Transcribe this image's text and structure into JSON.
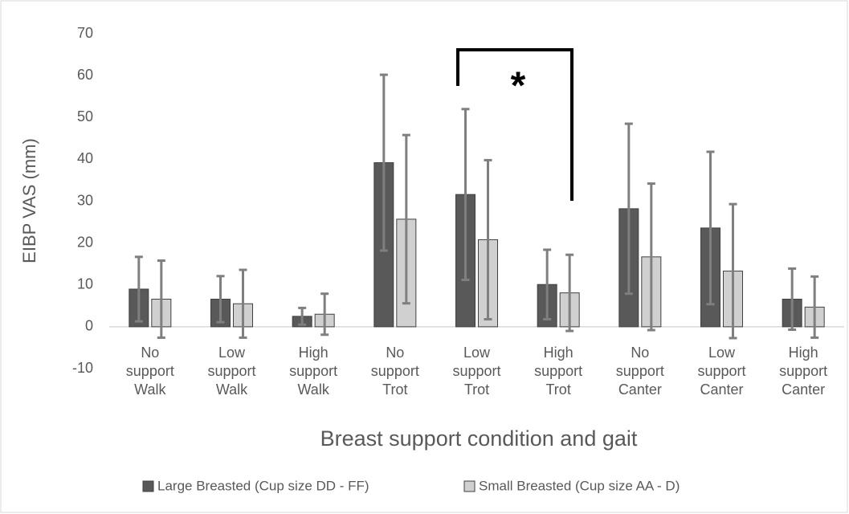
{
  "chart_data": {
    "type": "bar",
    "x_label": "Breast support condition and gait",
    "y_label": "EIBP VAS (mm)",
    "annotation": "*",
    "categories": [
      "No support Walk",
      "Low support Walk",
      "High support Walk",
      "No support Trot",
      "Low support Trot",
      "High support Trot",
      "No support Canter",
      "Low support Canter",
      "High support Canter"
    ],
    "series": [
      {
        "name": "Large Breasted (Cup size DD - FF)",
        "color": "#595959",
        "values": [
          9,
          6.6,
          2.5,
          39.2,
          31.6,
          10.1,
          28.2,
          23.6,
          6.6
        ],
        "errors": [
          7.7,
          5.5,
          2,
          21,
          20.4,
          8.3,
          20.3,
          18.2,
          7.3
        ]
      },
      {
        "name": "Small Breasted (Cup size AA - D)",
        "color": "#d0d0d0",
        "values": [
          6.6,
          5.5,
          3,
          25.7,
          20.8,
          8.1,
          16.7,
          13.3,
          4.7
        ],
        "errors": [
          9.2,
          8.1,
          4.9,
          20.1,
          19,
          9.1,
          17.5,
          16,
          7.3
        ]
      }
    ],
    "ylim": [
      -10,
      70
    ],
    "yticks": [
      -10,
      0,
      10,
      20,
      30,
      40,
      50,
      60,
      70
    ],
    "grid": false,
    "legend": "bottom"
  }
}
